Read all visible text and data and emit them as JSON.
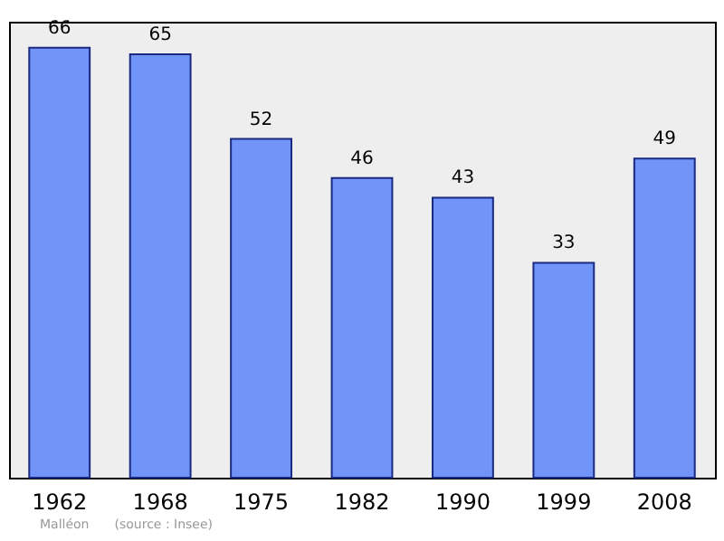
{
  "chart_data": {
    "type": "bar",
    "categories": [
      "1962",
      "1968",
      "1975",
      "1982",
      "1990",
      "1999",
      "2008"
    ],
    "values": [
      66,
      65,
      52,
      46,
      43,
      33,
      49
    ],
    "color": "#7094f7",
    "data_labels": true,
    "annotations": [
      "Malléon",
      "(source : Insee)"
    ]
  }
}
